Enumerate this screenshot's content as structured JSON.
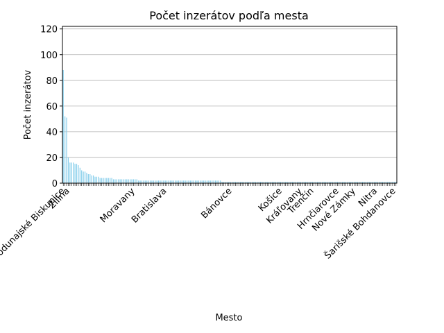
{
  "chart_data": {
    "type": "bar",
    "title": "Počet inzerátov podľa mesta",
    "xlabel": "Mesto",
    "ylabel": "Počet inzerátov",
    "color": "#87ceeb",
    "grid": true,
    "ylim": [
      0,
      122
    ],
    "yticks": [
      0,
      20,
      40,
      60,
      80,
      100,
      120
    ],
    "categories": [
      null,
      "Bratislava - Podunajské Biskupice",
      null,
      null,
      "Žilina",
      null,
      null,
      null,
      null,
      null,
      null,
      null,
      null,
      null,
      null,
      null,
      null,
      null,
      null,
      null,
      null,
      null,
      null,
      null,
      null,
      null,
      null,
      null,
      null,
      null,
      null,
      null,
      null,
      null,
      null,
      null,
      null,
      null,
      null,
      null,
      null,
      null,
      null,
      "Moravany",
      null,
      null,
      null,
      null,
      null,
      null,
      null,
      null,
      null,
      null,
      null,
      null,
      null,
      null,
      null,
      null,
      null,
      null,
      "Bratislava",
      null,
      null,
      null,
      null,
      null,
      null,
      null,
      null,
      null,
      null,
      null,
      null,
      null,
      null,
      null,
      null,
      null,
      null,
      null,
      null,
      null,
      null,
      null,
      null,
      null,
      null,
      null,
      null,
      null,
      null,
      null,
      null,
      null,
      null,
      null,
      null,
      null,
      null,
      "Bánovce",
      null,
      null,
      null,
      null,
      null,
      null,
      null,
      null,
      null,
      null,
      null,
      null,
      null,
      null,
      null,
      null,
      null,
      null,
      null,
      null,
      null,
      null,
      null,
      null,
      null,
      null,
      null,
      null,
      null,
      "Košice",
      null,
      null,
      null,
      null,
      null,
      null,
      null,
      null,
      null,
      null,
      null,
      "Kráľovany",
      null,
      null,
      null,
      null,
      null,
      null,
      "Trenčín",
      null,
      null,
      null,
      null,
      null,
      null,
      null,
      null,
      null,
      null,
      null,
      null,
      null,
      null,
      "Hrnčiarovce",
      null,
      null,
      null,
      null,
      null,
      null,
      null,
      null,
      null,
      "Nové Zámky",
      null,
      null,
      null,
      null,
      null,
      null,
      null,
      null,
      null,
      null,
      null,
      null,
      "Nitra",
      null,
      null,
      null,
      null,
      null,
      null,
      null,
      null,
      null,
      null,
      "Šarišské Bohdanovce"
    ],
    "values": [
      88,
      52,
      51,
      20,
      16,
      16,
      16,
      15,
      15,
      14,
      12,
      10,
      9,
      9,
      8,
      7,
      7,
      6,
      6,
      5,
      5,
      5,
      4,
      4,
      4,
      4,
      4,
      4,
      4,
      4,
      3,
      3,
      3,
      3,
      3,
      3,
      3,
      3,
      3,
      3,
      3,
      3,
      3,
      3,
      3,
      2,
      2,
      2,
      2,
      2,
      2,
      2,
      2,
      2,
      2,
      2,
      2,
      2,
      2,
      2,
      2,
      2,
      2,
      2,
      2,
      2,
      2,
      2,
      2,
      2,
      2,
      2,
      2,
      2,
      2,
      2,
      2,
      2,
      2,
      2,
      2,
      2,
      2,
      2,
      2,
      2,
      2,
      2,
      2,
      2,
      2,
      2,
      2,
      2,
      2,
      1,
      1,
      1,
      1,
      1,
      1,
      1,
      1,
      1,
      1,
      1,
      1,
      1,
      1,
      1,
      1,
      1,
      1,
      1,
      1,
      1,
      1,
      1,
      1,
      1,
      1,
      1,
      1,
      1,
      1,
      1,
      1,
      1,
      1,
      1,
      1,
      1,
      1,
      1,
      1,
      1,
      1,
      1,
      1,
      1,
      1,
      1,
      1,
      1,
      1,
      1,
      1,
      1,
      1,
      1,
      1,
      1,
      1,
      1,
      1,
      1,
      1,
      1,
      1,
      1,
      1,
      1,
      1,
      1,
      1,
      1,
      1,
      1,
      1,
      1,
      1,
      1,
      1,
      1,
      1,
      1,
      1,
      1,
      1,
      1,
      1,
      1,
      1,
      1,
      1,
      1,
      1,
      1,
      1,
      1,
      1,
      1,
      1,
      1,
      1,
      1,
      1,
      1,
      1,
      1
    ]
  }
}
